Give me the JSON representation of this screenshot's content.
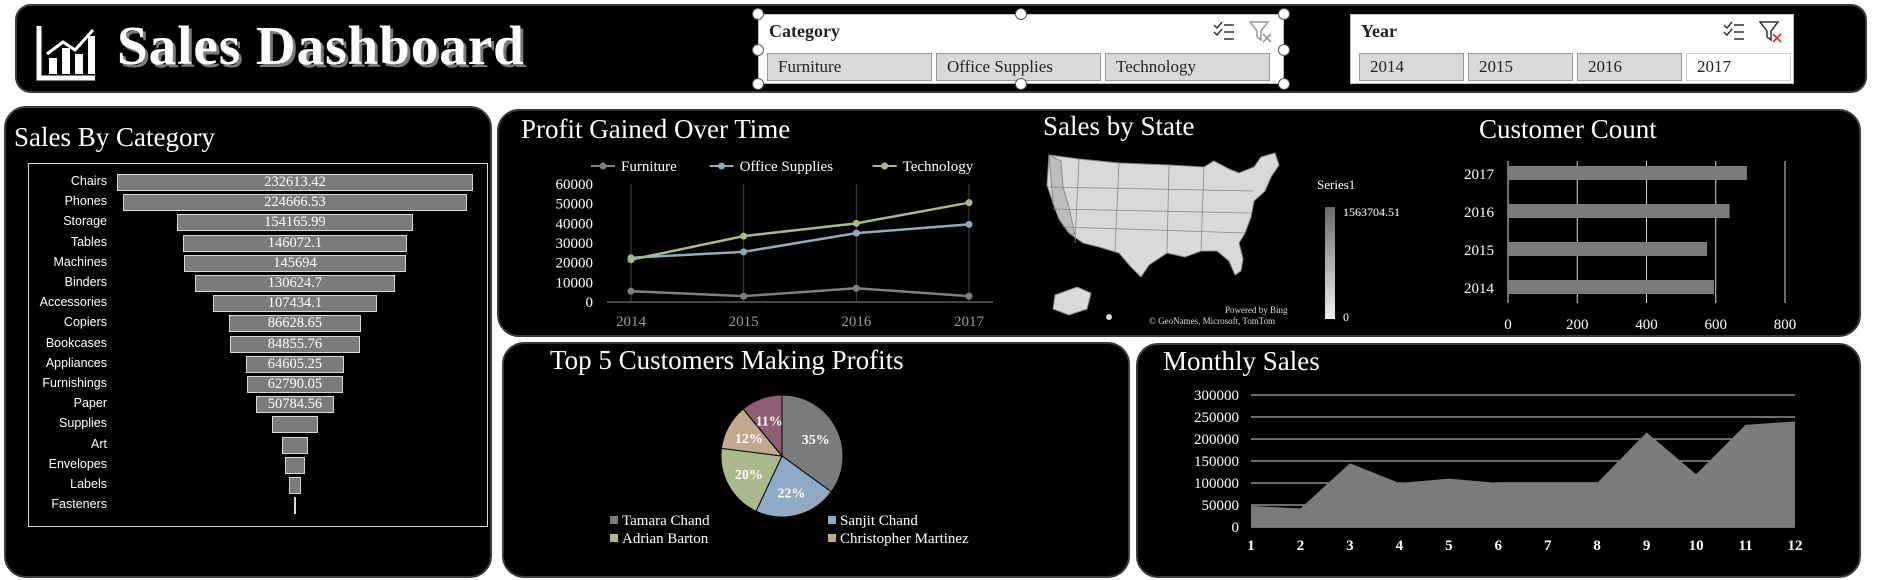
{
  "header": {
    "title": "Sales Dashboard",
    "logo_icon": "bar-chart-icon"
  },
  "slicers": {
    "category": {
      "title": "Category",
      "items": [
        {
          "label": "Furniture",
          "selected": false
        },
        {
          "label": "Office Supplies",
          "selected": false
        },
        {
          "label": "Technology",
          "selected": false
        }
      ]
    },
    "year": {
      "title": "Year",
      "items": [
        {
          "label": "2014",
          "selected": false
        },
        {
          "label": "2015",
          "selected": false
        },
        {
          "label": "2016",
          "selected": false
        },
        {
          "label": "2017",
          "selected": true
        }
      ]
    },
    "icons": {
      "multiselect": "multi-select-icon",
      "clear_filter": "clear-filter-icon"
    }
  },
  "colors": {
    "panel_bg": "#000000",
    "bar": "#7b7b7b",
    "furniture": "#7f7f7f",
    "office_supplies": "#8faac3",
    "technology": "#a9b98a",
    "map_fill": "#d9d9d9"
  },
  "chart_data": [
    {
      "id": "sales_by_category",
      "type": "bar",
      "title": "Sales By Category",
      "categories": [
        "Chairs",
        "Phones",
        "Storage",
        "Tables",
        "Machines",
        "Binders",
        "Accessories",
        "Copiers",
        "Bookcases",
        "Appliances",
        "Furnishings",
        "Paper",
        "Supplies",
        "Art",
        "Envelopes",
        "Labels",
        "Fasteners"
      ],
      "values": [
        232613.42,
        224666.53,
        154165.99,
        146072.1,
        145694,
        130624.7,
        107434.1,
        86628.65,
        84855.76,
        64605.25,
        62790.05,
        50784.56,
        30000,
        17500,
        13000,
        8400,
        1300
      ],
      "value_labels": [
        "232613.42",
        "224666.53",
        "154165.99",
        "146072.1",
        "145694",
        "130624.7",
        "107434.1",
        "86628.65",
        "84855.76",
        "64605.25",
        "62790.05",
        "50784.56",
        "",
        "",
        "",
        "",
        ""
      ],
      "style": "funnel"
    },
    {
      "id": "profit_over_time",
      "type": "line",
      "title": "Profit Gained Over Time",
      "x": [
        "2014",
        "2015",
        "2016",
        "2017"
      ],
      "ylim": [
        0,
        60000
      ],
      "yticks": [
        "0",
        "10000",
        "20000",
        "30000",
        "40000",
        "50000",
        "60000"
      ],
      "legend": "top",
      "series": [
        {
          "name": "Furniture",
          "values": [
            5500,
            3000,
            7000,
            3000
          ]
        },
        {
          "name": "Office Supplies",
          "values": [
            22500,
            25500,
            35000,
            39500
          ]
        },
        {
          "name": "Technology",
          "values": [
            21500,
            33500,
            40000,
            50500
          ]
        }
      ]
    },
    {
      "id": "sales_by_state",
      "type": "map",
      "title": "Sales by State",
      "legend_title": "Series1",
      "legend_max": "1563704.51",
      "legend_min": "0",
      "attribution_1": "Powered by Bing",
      "attribution_2": "© GeoNames, Microsoft, TomTom"
    },
    {
      "id": "customer_count",
      "type": "bar",
      "title": "Customer Count",
      "categories": [
        "2017",
        "2016",
        "2015",
        "2014"
      ],
      "values": [
        690,
        640,
        575,
        595
      ],
      "xlim": [
        0,
        800
      ],
      "xticks": [
        "0",
        "200",
        "400",
        "600",
        "800"
      ]
    },
    {
      "id": "top5_customers",
      "type": "pie",
      "title": "Top 5 Customers Making Profits",
      "slices": [
        {
          "name": "Tamara Chand",
          "value": 35,
          "label": "35%"
        },
        {
          "name": "Sanjit Chand",
          "value": 22,
          "label": "22%"
        },
        {
          "name": "Adrian Barton",
          "value": 20,
          "label": "20%"
        },
        {
          "name": "Christopher Martinez",
          "value": 12,
          "label": "12%"
        },
        {
          "name": "",
          "value": 11,
          "label": "11%"
        }
      ],
      "legend": "bottom"
    },
    {
      "id": "monthly_sales",
      "type": "area",
      "title": "Monthly Sales",
      "x": [
        "1",
        "2",
        "3",
        "4",
        "5",
        "6",
        "7",
        "8",
        "9",
        "10",
        "11",
        "12"
      ],
      "values": [
        48000,
        42000,
        145000,
        100000,
        110000,
        100000,
        100000,
        100000,
        215000,
        120000,
        232000,
        240000
      ],
      "ylim": [
        0,
        300000
      ],
      "yticks": [
        "0",
        "50000",
        "100000",
        "150000",
        "200000",
        "250000",
        "300000"
      ],
      "grid": true
    }
  ]
}
